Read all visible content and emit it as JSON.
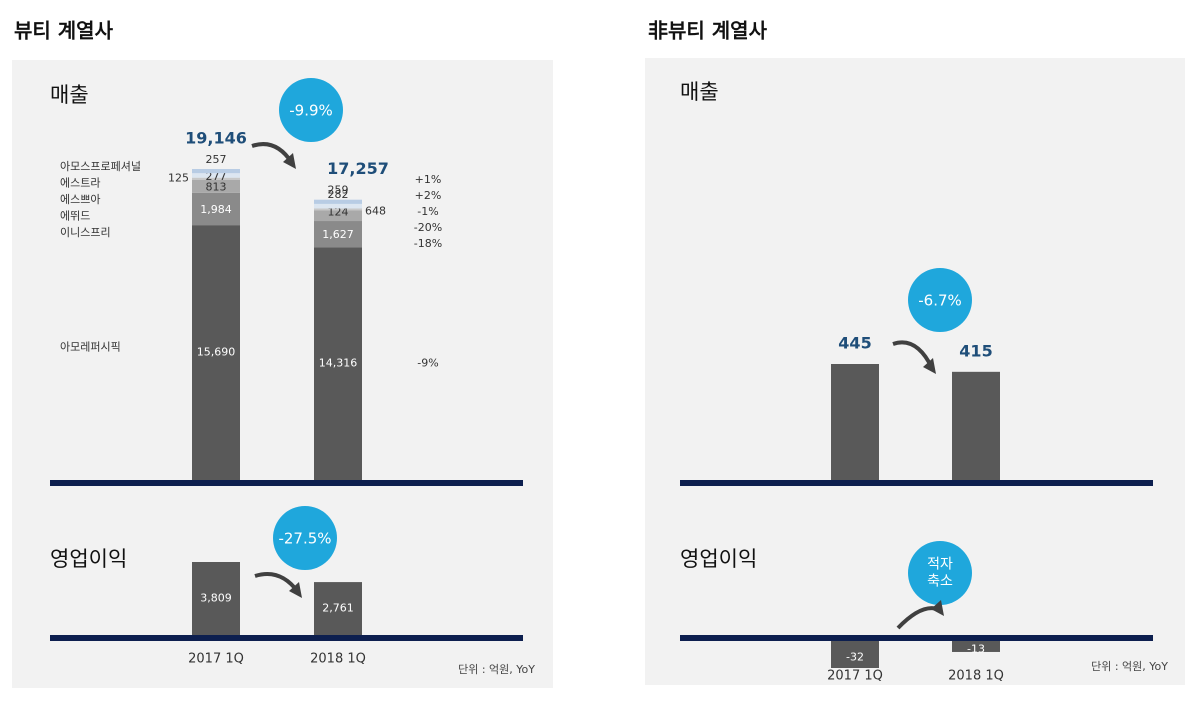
{
  "panels": [
    {
      "title": "뷰티 계열사",
      "unit_note": "단위 : 억원, YoY"
    },
    {
      "title": "非뷰티 계열사",
      "unit_note": "단위 : 억원, YoY"
    }
  ],
  "chart_data": [
    {
      "type": "stacked-bar",
      "title": "매출",
      "change": "-9.9%",
      "totals": [
        19146,
        17257
      ],
      "total_labels": [
        "19,146",
        "17,257"
      ],
      "series": [
        {
          "name": "아모레퍼시픽",
          "color": "#595959",
          "values": [
            15690,
            14316
          ],
          "value_labels": [
            "15,690",
            "14,316"
          ],
          "yoy": "-9%"
        },
        {
          "name": "이니스프리",
          "color": "#8a8a8a",
          "values": [
            1984,
            1627
          ],
          "value_labels": [
            "1,984",
            "1,627"
          ],
          "yoy": "-18%"
        },
        {
          "name": "에뛰드",
          "color": "#a9a9a9",
          "values": [
            813,
            648
          ],
          "value_labels": [
            "813",
            "648"
          ],
          "yoy": "-20%"
        },
        {
          "name": "에스쁘아",
          "color": "#c8c8c8",
          "values": [
            125,
            124
          ],
          "value_labels": [
            "125",
            "124"
          ],
          "yoy": "-1%"
        },
        {
          "name": "에스트라",
          "color": "#dce6f1",
          "values": [
            277,
            282
          ],
          "value_labels": [
            "277",
            "282"
          ],
          "yoy": "+2%"
        },
        {
          "name": "아모스프로페셔널",
          "color": "#b8cce4",
          "values": [
            257,
            259
          ],
          "value_labels": [
            "257",
            "259"
          ],
          "yoy": "+1%"
        }
      ]
    },
    {
      "type": "bar",
      "title": "영업이익",
      "change": "-27.5%",
      "categories": [
        "2017 1Q",
        "2018 1Q"
      ],
      "values": [
        3809,
        2761
      ],
      "value_labels": [
        "3,809",
        "2,761"
      ],
      "color": "#595959"
    },
    {
      "type": "bar-top",
      "title": "매출",
      "change": "-6.7%",
      "values": [
        445,
        415
      ],
      "color": "#595959"
    },
    {
      "type": "bar",
      "title": "영업이익",
      "change": "적자\n축소",
      "categories": [
        "2017 1Q",
        "2018 1Q"
      ],
      "values": [
        -32,
        -13
      ],
      "color": "#595959"
    }
  ]
}
